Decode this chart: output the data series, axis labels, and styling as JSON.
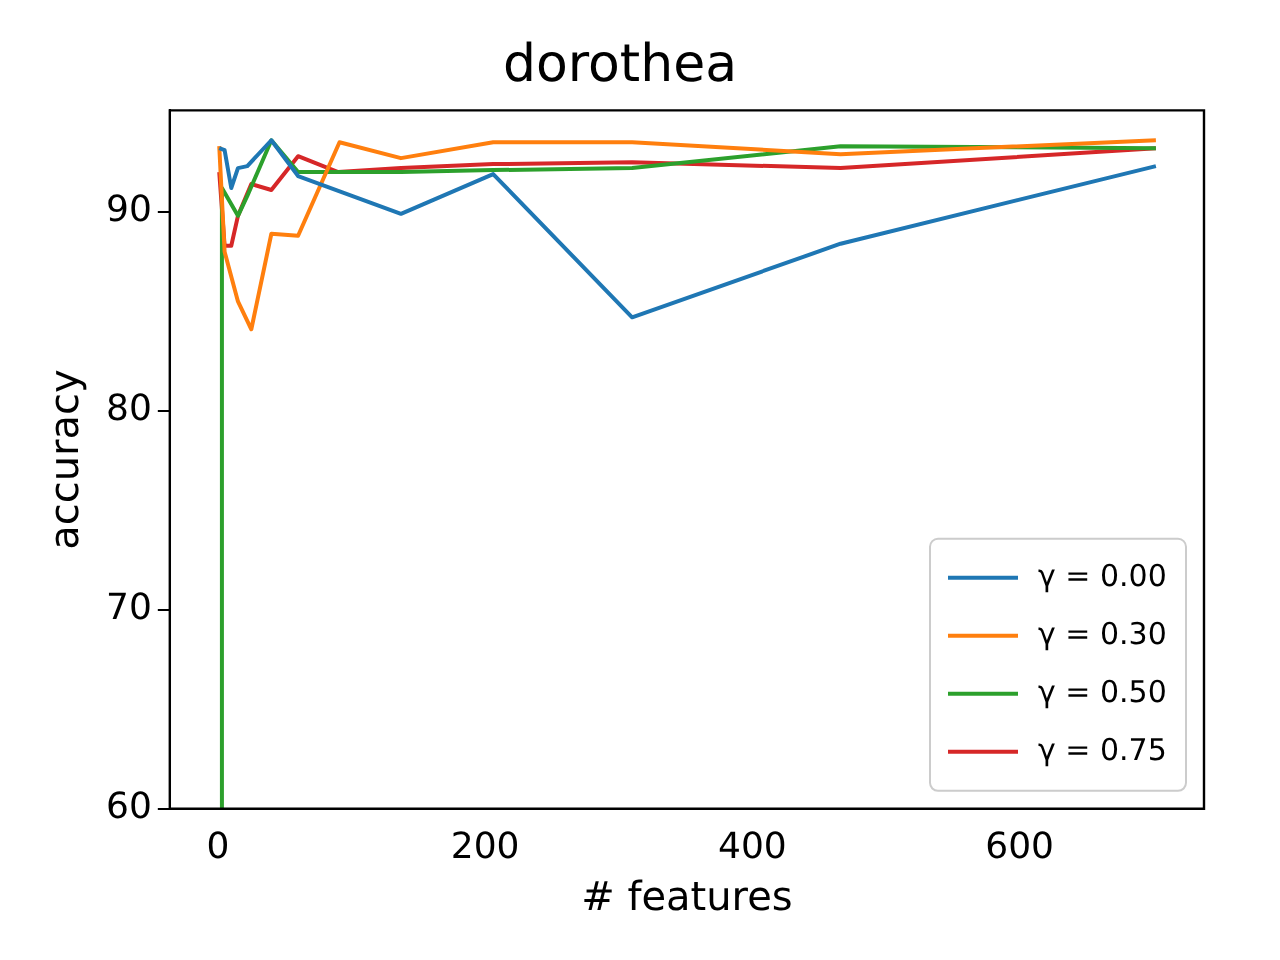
{
  "chart_data": {
    "type": "line",
    "title": "dorothea",
    "xlabel": "# features",
    "ylabel": "accuracy",
    "xlim": [
      -36,
      738
    ],
    "ylim": [
      60,
      95.1
    ],
    "xticks": [
      0,
      200,
      400,
      600
    ],
    "yticks": [
      60,
      70,
      80,
      90
    ],
    "grid": false,
    "legend": "bottom right",
    "marker": "none",
    "line_style": "solid",
    "series": [
      {
        "name": "γ = 0.00",
        "color": "#1f77b4",
        "x": [
          1,
          5,
          10,
          15,
          22,
          40,
          60,
          137,
          206,
          310,
          466,
          702
        ],
        "values": [
          93.2,
          93.1,
          91.2,
          92.2,
          92.3,
          93.6,
          91.8,
          89.9,
          91.9,
          84.7,
          88.4,
          92.3
        ]
      },
      {
        "name": "γ = 0.30",
        "color": "#ff7f0e",
        "x": [
          1,
          5,
          15,
          25,
          40,
          60,
          91,
          137,
          206,
          310,
          466,
          702
        ],
        "values": [
          93.3,
          88.0,
          85.5,
          84.1,
          88.9,
          88.8,
          93.5,
          92.7,
          93.5,
          93.5,
          92.9,
          93.6
        ]
      },
      {
        "name": "γ = 0.50",
        "color": "#2ca02c",
        "x": [
          2,
          3,
          15,
          22,
          40,
          60,
          137,
          206,
          310,
          466,
          702
        ],
        "values": [
          60,
          91.2,
          89.8,
          90.8,
          93.6,
          92.0,
          92.0,
          92.1,
          92.2,
          93.3,
          93.2
        ]
      },
      {
        "name": "γ = 0.75",
        "color": "#d62728",
        "x": [
          1,
          5,
          10,
          15,
          25,
          40,
          60,
          90,
          137,
          206,
          310,
          466,
          702
        ],
        "values": [
          92.0,
          88.3,
          88.3,
          89.8,
          91.4,
          91.1,
          92.8,
          92.0,
          92.2,
          92.4,
          92.5,
          92.2,
          93.2
        ]
      }
    ]
  }
}
